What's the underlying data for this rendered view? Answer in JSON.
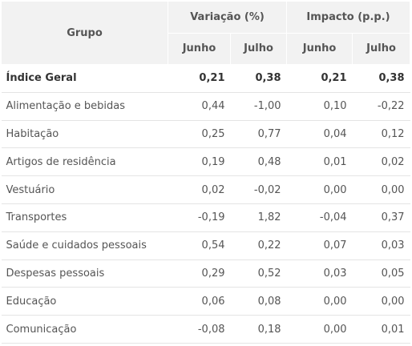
{
  "header": {
    "group_label": "Grupo",
    "variation_label": "Variação (%)",
    "impact_label": "Impacto (p.p.)",
    "sub_labels": [
      "Junho",
      "Julho",
      "Junho",
      "Julho"
    ]
  },
  "rows": [
    {
      "name": "Índice Geral",
      "values": [
        "0,21",
        "0,38",
        "0,21",
        "0,38"
      ],
      "bold": true
    },
    {
      "name": "Alimentação e bebidas",
      "values": [
        "0,44",
        "-1,00",
        "0,10",
        "-0,22"
      ]
    },
    {
      "name": "Habitação",
      "values": [
        "0,25",
        "0,77",
        "0,04",
        "0,12"
      ]
    },
    {
      "name": "Artigos de residência",
      "values": [
        "0,19",
        "0,48",
        "0,01",
        "0,02"
      ]
    },
    {
      "name": "Vestuário",
      "values": [
        "0,02",
        "-0,02",
        "0,00",
        "0,00"
      ]
    },
    {
      "name": "Transportes",
      "values": [
        "-0,19",
        "1,82",
        "-0,04",
        "0,37"
      ]
    },
    {
      "name": "Saúde e cuidados pessoais",
      "values": [
        "0,54",
        "0,22",
        "0,07",
        "0,03"
      ]
    },
    {
      "name": "Despesas pessoais",
      "values": [
        "0,29",
        "0,52",
        "0,03",
        "0,05"
      ]
    },
    {
      "name": "Educação",
      "values": [
        "0,06",
        "0,08",
        "0,00",
        "0,00"
      ]
    },
    {
      "name": "Comunicação",
      "values": [
        "-0,08",
        "0,18",
        "0,00",
        "0,01"
      ]
    }
  ]
}
